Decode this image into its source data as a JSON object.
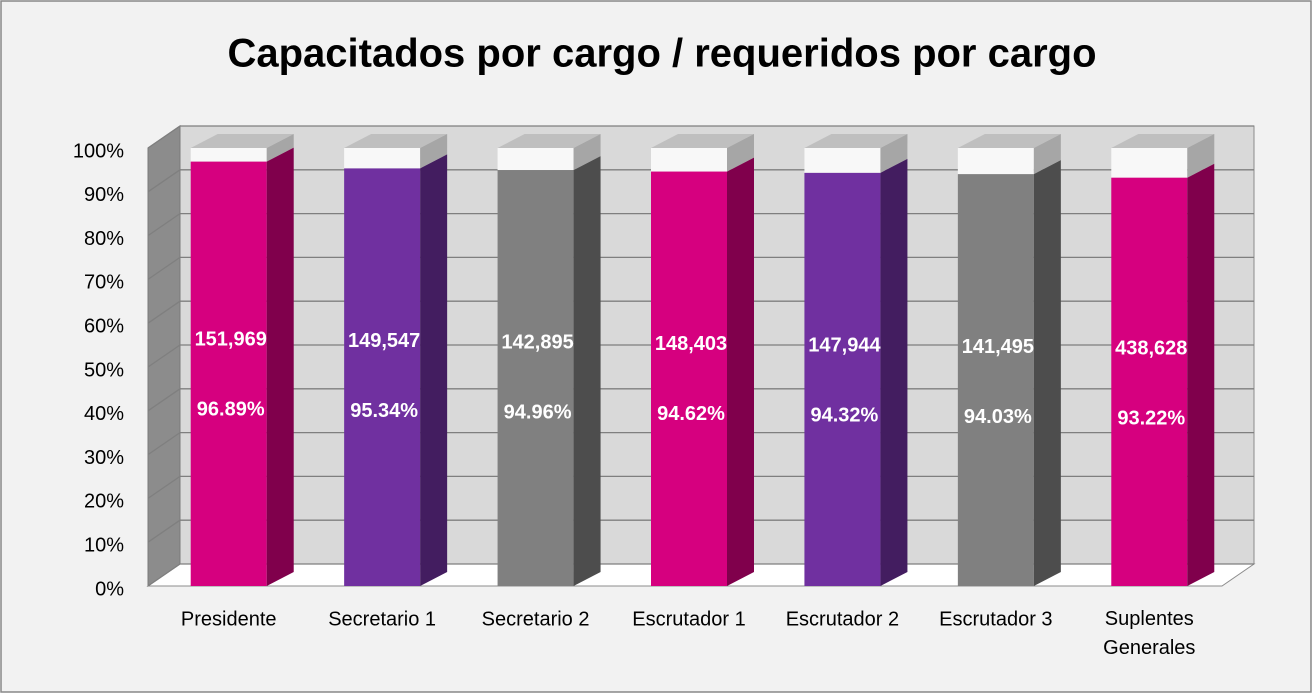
{
  "chart_data": {
    "type": "bar3d",
    "title": "Capacitados por cargo / requeridos por cargo",
    "categories": [
      "Presidente",
      "Secretario 1",
      "Secretario 2",
      "Escrutador 1",
      "Escrutador 2",
      "Escrutador 3",
      "Suplentes Generales"
    ],
    "values": [
      96.89,
      95.34,
      94.96,
      94.62,
      94.32,
      94.03,
      93.22
    ],
    "value_labels": [
      "96.89%",
      "95.34%",
      "94.96%",
      "94.62%",
      "94.32%",
      "94.03%",
      "93.22%"
    ],
    "counts": [
      151969,
      149547,
      142895,
      148403,
      147944,
      141495,
      438628
    ],
    "count_labels": [
      "151,969",
      "149,547",
      "142,895",
      "148,403",
      "147,944",
      "141,495",
      "438,628"
    ],
    "colors": [
      "#d6007f",
      "#7030a0",
      "#808080",
      "#d6007f",
      "#7030a0",
      "#808080",
      "#d6007f"
    ],
    "ylim": [
      0,
      100
    ],
    "yticks": [
      {
        "value": 0,
        "label": "0%"
      },
      {
        "value": 10,
        "label": "10%"
      },
      {
        "value": 20,
        "label": "20%"
      },
      {
        "value": 30,
        "label": "30%"
      },
      {
        "value": 40,
        "label": "40%"
      },
      {
        "value": 50,
        "label": "50%"
      },
      {
        "value": 60,
        "label": "60%"
      },
      {
        "value": 70,
        "label": "70%"
      },
      {
        "value": 80,
        "label": "80%"
      },
      {
        "value": 90,
        "label": "90%"
      },
      {
        "value": 100,
        "label": "100%"
      }
    ],
    "grid": true
  }
}
